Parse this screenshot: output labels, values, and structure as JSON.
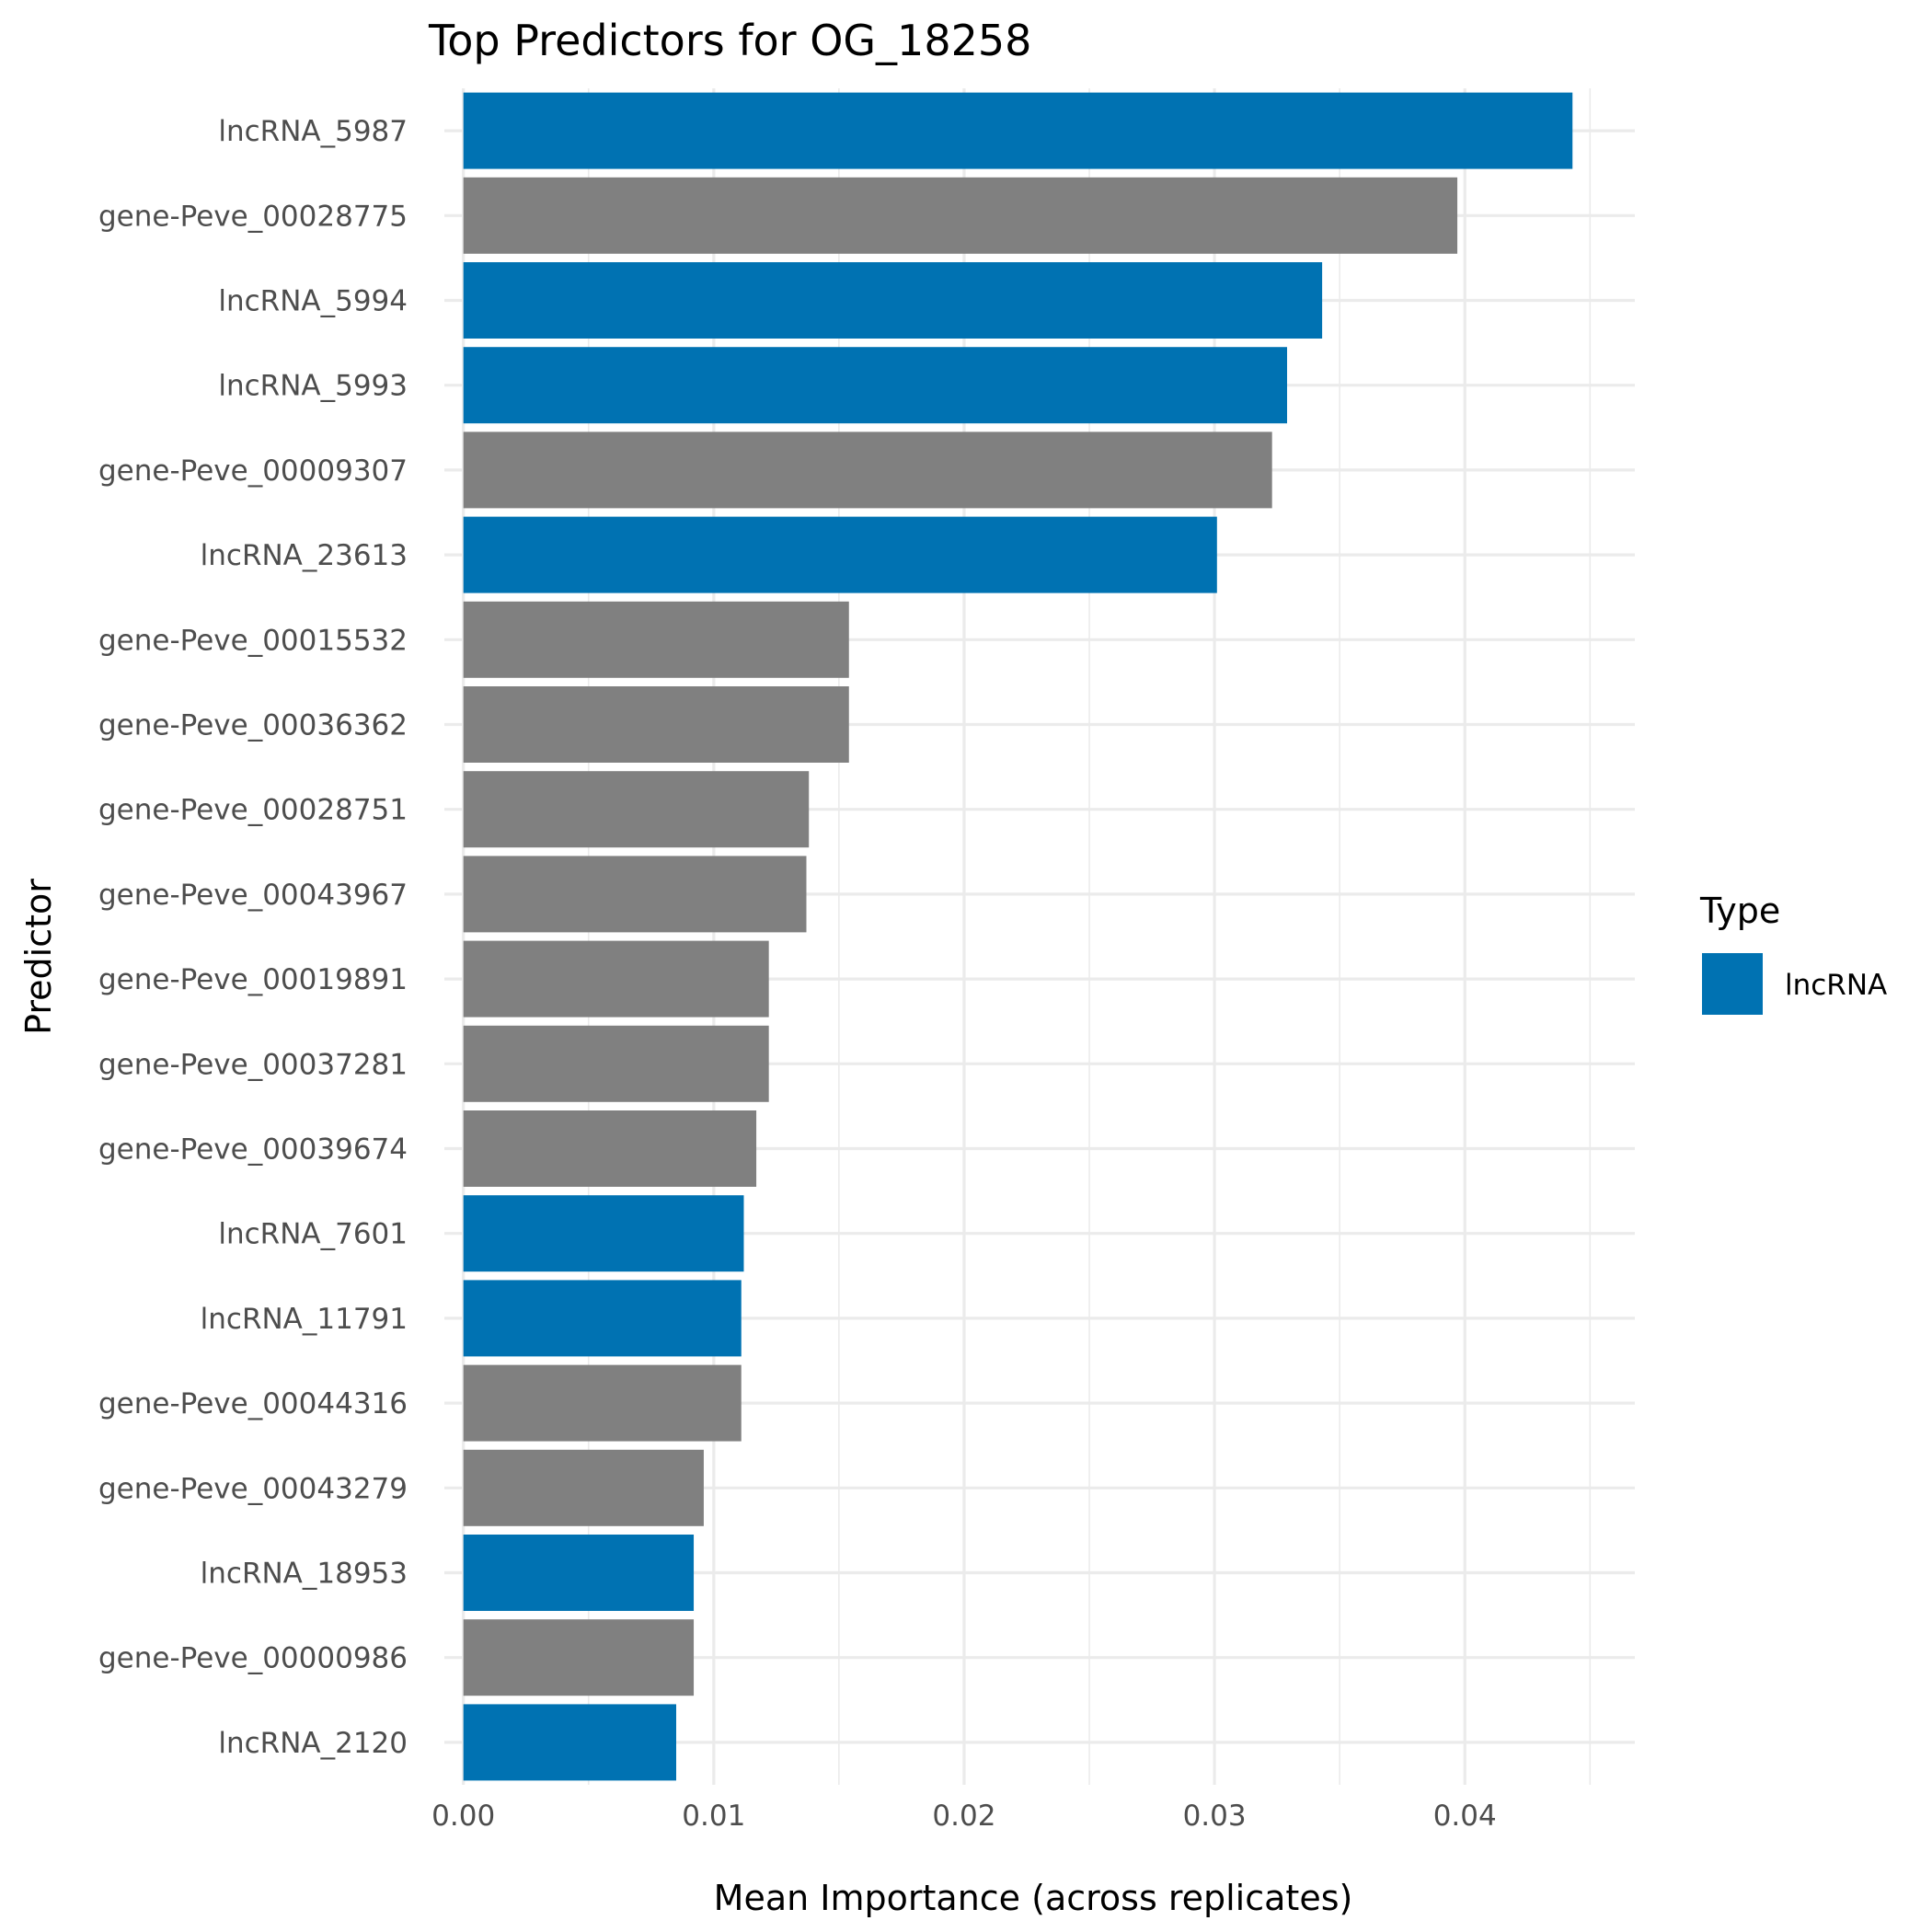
{
  "chart_data": {
    "type": "bar",
    "orientation": "horizontal",
    "title": "Top Predictors for OG_18258",
    "xlabel": "Mean Importance (across replicates)",
    "ylabel": "Predictor",
    "xlim": [
      -0.00076,
      0.04679
    ],
    "x_ticks": [
      0.0,
      0.01,
      0.02,
      0.03,
      0.04
    ],
    "x_tick_labels": [
      "0.00",
      "0.01",
      "0.02",
      "0.03",
      "0.04"
    ],
    "grid": true,
    "colors": {
      "lncRNA": "#0072B2",
      "gene": "#808080"
    },
    "legend": {
      "title": "Type",
      "placement": "right",
      "entries": [
        {
          "label": "lncRNA",
          "color": "#0072B2"
        }
      ]
    },
    "bars": [
      {
        "label": "lncRNA_5987",
        "value": 0.0443,
        "type": "lncRNA"
      },
      {
        "label": "gene-Peve_00028775",
        "value": 0.0397,
        "type": "gene"
      },
      {
        "label": "lncRNA_5994",
        "value": 0.0343,
        "type": "lncRNA"
      },
      {
        "label": "lncRNA_5993",
        "value": 0.0329,
        "type": "lncRNA"
      },
      {
        "label": "gene-Peve_00009307",
        "value": 0.0323,
        "type": "gene"
      },
      {
        "label": "lncRNA_23613",
        "value": 0.0301,
        "type": "lncRNA"
      },
      {
        "label": "gene-Peve_00015532",
        "value": 0.0154,
        "type": "gene"
      },
      {
        "label": "gene-Peve_00036362",
        "value": 0.0154,
        "type": "gene"
      },
      {
        "label": "gene-Peve_00028751",
        "value": 0.0138,
        "type": "gene"
      },
      {
        "label": "gene-Peve_00043967",
        "value": 0.0137,
        "type": "gene"
      },
      {
        "label": "gene-Peve_00019891",
        "value": 0.0122,
        "type": "gene"
      },
      {
        "label": "gene-Peve_00037281",
        "value": 0.0122,
        "type": "gene"
      },
      {
        "label": "gene-Peve_00039674",
        "value": 0.0117,
        "type": "gene"
      },
      {
        "label": "lncRNA_7601",
        "value": 0.0112,
        "type": "lncRNA"
      },
      {
        "label": "lncRNA_11791",
        "value": 0.0111,
        "type": "lncRNA"
      },
      {
        "label": "gene-Peve_00044316",
        "value": 0.0111,
        "type": "gene"
      },
      {
        "label": "gene-Peve_00043279",
        "value": 0.0096,
        "type": "gene"
      },
      {
        "label": "lncRNA_18953",
        "value": 0.0092,
        "type": "lncRNA"
      },
      {
        "label": "gene-Peve_00000986",
        "value": 0.0092,
        "type": "gene"
      },
      {
        "label": "lncRNA_2120",
        "value": 0.0085,
        "type": "lncRNA"
      }
    ]
  }
}
